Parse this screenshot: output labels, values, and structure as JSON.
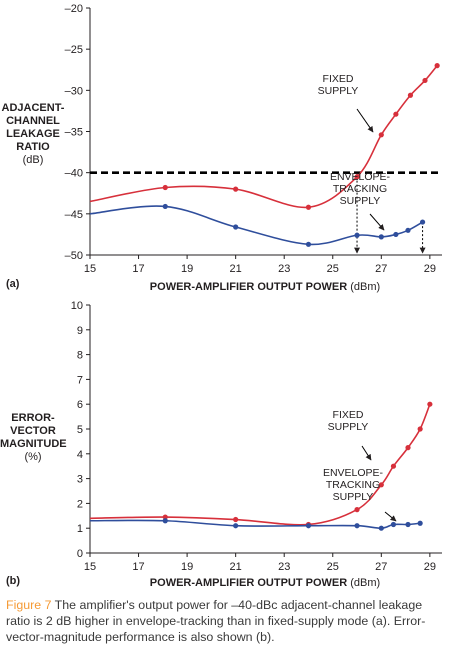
{
  "charts": [
    {
      "panel": "(a)",
      "ylabel_lines": [
        "ADJACENT-",
        "CHANNEL",
        "LEAKAGE",
        "RATIO"
      ],
      "yunit": "(dB)",
      "xlabel_bold": "POWER-AMPLIFIER OUTPUT POWER",
      "xlabel_unit": "(dBm)",
      "xticks": [
        "15",
        "17",
        "19",
        "21",
        "23",
        "25",
        "27",
        "29"
      ],
      "yticks": [
        "–50",
        "–45",
        "–40",
        "–35",
        "–30",
        "–25",
        "–20"
      ],
      "annotations": [
        {
          "lines": [
            "FIXED",
            "SUPPLY"
          ]
        },
        {
          "lines": [
            "ENVELOPE-",
            "TRACKING",
            "SUPPLY"
          ]
        }
      ]
    },
    {
      "panel": "(b)",
      "ylabel_lines": [
        "ERROR-",
        "VECTOR",
        "MAGNITUDE"
      ],
      "yunit": "(%)",
      "xlabel_bold": "POWER-AMPLIFIER OUTPUT POWER",
      "xlabel_unit": "(dBm)",
      "xticks": [
        "15",
        "17",
        "19",
        "21",
        "23",
        "25",
        "27",
        "29"
      ],
      "yticks": [
        "0",
        "1",
        "2",
        "3",
        "4",
        "5",
        "6",
        "7",
        "8",
        "9",
        "10"
      ],
      "annotations": [
        {
          "lines": [
            "FIXED",
            "SUPPLY"
          ]
        },
        {
          "lines": [
            "ENVELOPE-",
            "TRACKING",
            "SUPPLY"
          ]
        }
      ]
    }
  ],
  "caption": {
    "lead": "Figure 7",
    "line1": " The amplifier's output power for –40-dBc adjacent-channel leakage",
    "line2": "ratio is 2 dB higher in envelope-tracking than in fixed-supply mode (a). Error-",
    "line3": "vector-magnitude performance is also shown (b)."
  },
  "colors": {
    "fixed": "#d7303b",
    "tracking": "#2f4e9c",
    "accent": "#f59b36"
  },
  "chart_data": [
    {
      "type": "line",
      "xlabel": "POWER-AMPLIFIER OUTPUT POWER (dBm)",
      "ylabel": "ADJACENT-CHANNEL LEAKAGE RATIO (dB)",
      "xlim": [
        15,
        29.5
      ],
      "ylim": [
        -50,
        -20
      ],
      "reference_line_y": -40,
      "series": [
        {
          "name": "FIXED SUPPLY",
          "color": "#d7303b",
          "x": [
            15,
            18.1,
            21,
            24,
            26,
            27,
            27.6,
            28.2,
            28.8,
            29.3
          ],
          "y": [
            -43.5,
            -41.8,
            -42,
            -44.2,
            -40.5,
            -35.4,
            -32.9,
            -30.6,
            -28.8,
            -27
          ]
        },
        {
          "name": "ENVELOPE-TRACKING SUPPLY",
          "color": "#2f4e9c",
          "x": [
            15,
            18.1,
            21,
            24,
            26,
            27,
            27.6,
            28.1,
            28.7
          ],
          "y": [
            -45,
            -44.1,
            -46.6,
            -48.7,
            -47.6,
            -47.8,
            -47.5,
            -47,
            -46
          ]
        }
      ]
    },
    {
      "type": "line",
      "xlabel": "POWER-AMPLIFIER OUTPUT POWER (dBm)",
      "ylabel": "ERROR-VECTOR MAGNITUDE (%)",
      "xlim": [
        15,
        29.5
      ],
      "ylim": [
        0,
        10
      ],
      "series": [
        {
          "name": "FIXED SUPPLY",
          "color": "#d7303b",
          "x": [
            15,
            18.1,
            21,
            24,
            26,
            27,
            27.5,
            28.1,
            28.6,
            29
          ],
          "y": [
            1.4,
            1.45,
            1.35,
            1.15,
            1.75,
            2.75,
            3.5,
            4.25,
            5,
            6
          ]
        },
        {
          "name": "ENVELOPE-TRACKING SUPPLY",
          "color": "#2f4e9c",
          "x": [
            15,
            18.1,
            21,
            24,
            26,
            27,
            27.5,
            28.1,
            28.6
          ],
          "y": [
            1.3,
            1.3,
            1.1,
            1.1,
            1.1,
            1.0,
            1.15,
            1.15,
            1.2
          ]
        }
      ]
    }
  ]
}
